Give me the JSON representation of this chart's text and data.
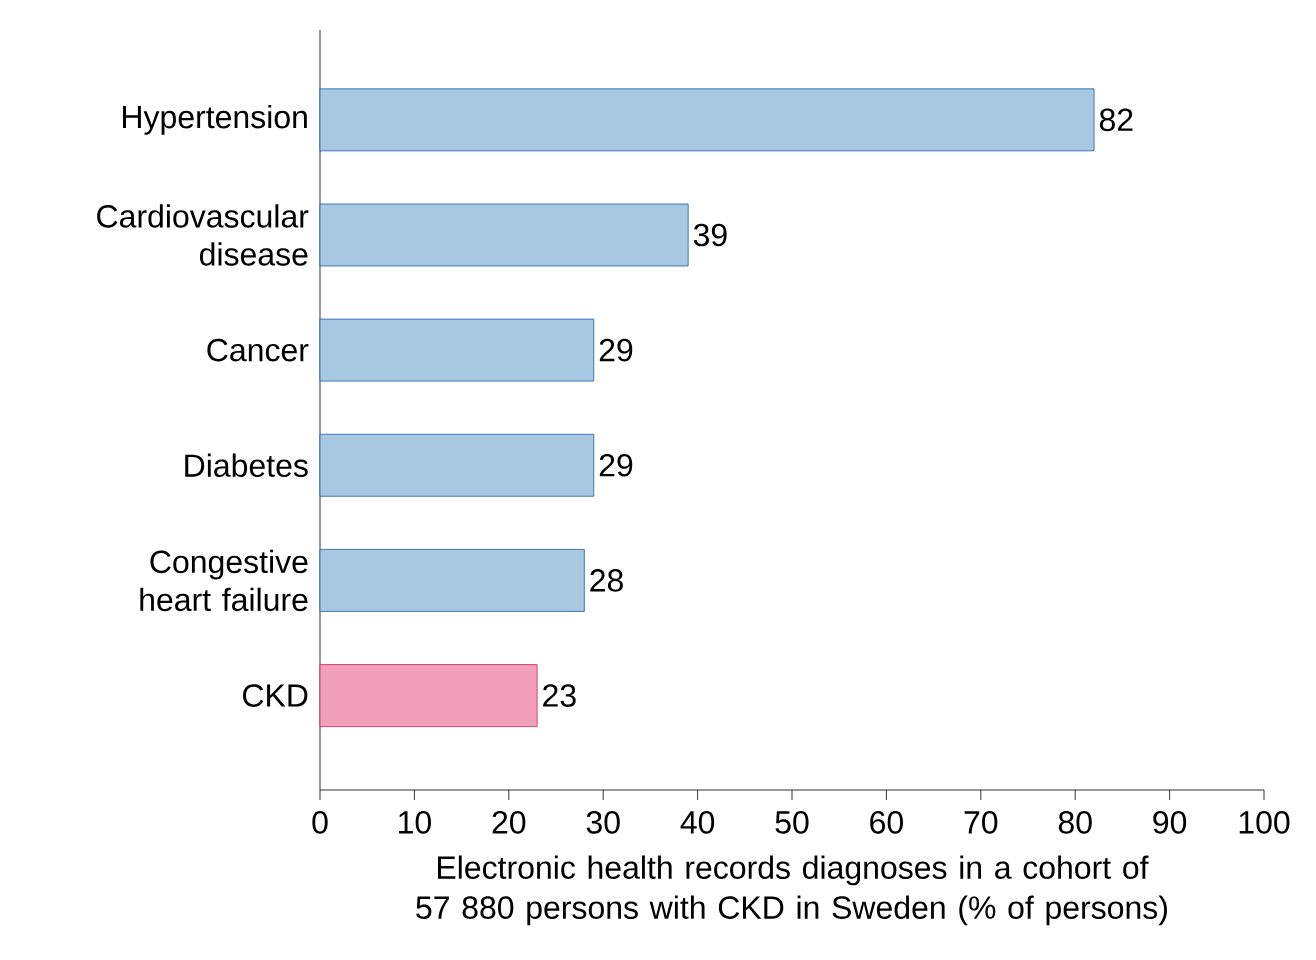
{
  "chart_data": {
    "type": "bar",
    "orientation": "horizontal",
    "xlabel": "Electronic health records diagnoses in a cohort of 57 880 persons with CKD in Sweden (% of persons)",
    "categories": [
      "Hypertension",
      "Cardiovascular disease",
      "Cancer",
      "Diabetes",
      "Congestive heart failure",
      "CKD"
    ],
    "values": [
      82,
      39,
      29,
      29,
      28,
      23
    ],
    "colors": [
      "#a8c8e2",
      "#a8c8e2",
      "#a8c8e2",
      "#a8c8e2",
      "#a8c8e2",
      "#f19fbb"
    ],
    "xlim": [
      0,
      100
    ],
    "xticks": [
      0,
      10,
      20,
      30,
      40,
      50,
      60,
      70,
      80,
      90,
      100
    ],
    "data_labels": true
  }
}
